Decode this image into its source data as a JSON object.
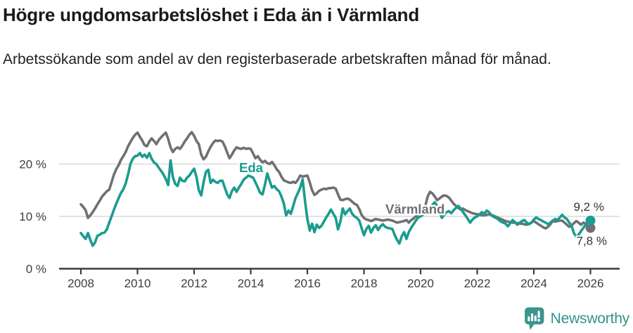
{
  "header": {
    "title": "Högre ungdomsarbetslöshet i Eda än i Värmland",
    "subtitle": "Arbetssökande som andel av den registerbaserade arbetskraften månad för månad."
  },
  "chart_data": {
    "type": "line",
    "title": "Högre ungdomsarbetslöshet i Eda än i Värmland",
    "subtitle": "Arbetssökande som andel av den registerbaserade arbetskraften månad för månad.",
    "unit": "%",
    "x_start_year": 2008,
    "points_per_year": 12,
    "x_end_year": 2026,
    "ylim": [
      0,
      28
    ],
    "grid": "horizontal",
    "legend_position": "inline-labels",
    "xticks": [
      2008,
      2010,
      2012,
      2014,
      2016,
      2018,
      2020,
      2022,
      2024,
      2026
    ],
    "yticks": [
      {
        "value": 0,
        "label": "0 %"
      },
      {
        "value": 10,
        "label": "10 %"
      },
      {
        "value": 20,
        "label": "20 %"
      }
    ],
    "colors": {
      "grid": "#d9d9d9",
      "axis": "#3c3c3c",
      "axis_text": "#3d3d3d",
      "value_text": "#333333"
    },
    "series": [
      {
        "name": "Eda",
        "color": "#1a9c8e",
        "end_value": 9.2,
        "end_label": "9,2 %",
        "end_label_offset": [
          -24,
          -14
        ],
        "label_pos": {
          "x": 340,
          "y": 245
        },
        "values": [
          6.8,
          6.2,
          5.7,
          6.8,
          5.5,
          4.4,
          5.0,
          6.3,
          6.5,
          6.8,
          6.9,
          7.5,
          8.8,
          10.0,
          11.3,
          12.4,
          13.5,
          14.5,
          15.2,
          16.3,
          18.0,
          20.0,
          21.0,
          21.5,
          21.6,
          22.1,
          21.4,
          21.8,
          21.2,
          22.1,
          21.0,
          20.3,
          20.0,
          19.3,
          18.7,
          18.0,
          17.1,
          16.0,
          20.7,
          17.5,
          16.2,
          15.8,
          17.4,
          16.8,
          16.7,
          17.4,
          17.8,
          18.5,
          19.1,
          17.5,
          15.0,
          14.0,
          16.5,
          18.5,
          18.9,
          16.4,
          17.0,
          16.6,
          16.4,
          16.8,
          16.8,
          15.5,
          14.2,
          13.5,
          14.8,
          15.5,
          14.7,
          15.5,
          16.2,
          17.0,
          17.4,
          17.8,
          17.6,
          17.4,
          16.5,
          15.5,
          14.5,
          14.2,
          16.0,
          18.2,
          16.8,
          15.5,
          15.8,
          15.2,
          14.8,
          13.8,
          12.5,
          10.2,
          11.1,
          10.5,
          12.0,
          13.5,
          14.5,
          15.5,
          17.1,
          13.0,
          9.5,
          7.3,
          8.6,
          7.0,
          8.4,
          7.8,
          8.2,
          9.0,
          9.8,
          10.5,
          11.3,
          10.5,
          9.7,
          7.5,
          9.0,
          11.5,
          10.4,
          11.0,
          11.5,
          10.5,
          10.0,
          9.7,
          9.2,
          7.8,
          6.4,
          7.6,
          8.2,
          6.9,
          7.8,
          8.3,
          7.4,
          8.1,
          8.5,
          8.0,
          7.8,
          7.7,
          7.6,
          6.5,
          5.5,
          4.8,
          6.2,
          7.0,
          5.7,
          7.0,
          7.8,
          8.5,
          9.2,
          9.8,
          10.0,
          10.3,
          10.8,
          11.3,
          11.8,
          12.2,
          12.7,
          12.0,
          11.0,
          9.7,
          10.3,
          10.8,
          11.0,
          10.6,
          11.2,
          11.6,
          12.0,
          11.5,
          10.8,
          10.2,
          9.5,
          8.8,
          9.4,
          9.8,
          10.0,
          10.4,
          10.8,
          10.5,
          11.1,
          10.8,
          10.2,
          9.9,
          9.7,
          9.4,
          9.0,
          8.8,
          8.6,
          8.1,
          8.7,
          9.3,
          8.9,
          8.4,
          8.8,
          9.1,
          9.3,
          8.8,
          8.5,
          8.8,
          9.4,
          9.8,
          9.5,
          9.3,
          9.0,
          8.8,
          8.5,
          8.8,
          9.2,
          9.5,
          9.3,
          9.8,
          10.3,
          9.8,
          9.5,
          8.8,
          8.2,
          6.8,
          6.1,
          6.5,
          7.2,
          7.8,
          8.5,
          9.0,
          9.2
        ]
      },
      {
        "name": "Värmland",
        "color": "#707074",
        "end_value": 7.8,
        "end_label": "7,8 %",
        "end_label_offset": [
          -20,
          24
        ],
        "label_pos": {
          "x": 548,
          "y": 304
        },
        "values": [
          12.3,
          11.8,
          11.2,
          9.7,
          10.2,
          10.8,
          11.5,
          12.3,
          13.0,
          13.8,
          14.3,
          14.8,
          15.1,
          16.5,
          18.0,
          19.0,
          19.8,
          20.8,
          21.5,
          22.3,
          23.4,
          24.2,
          25.0,
          25.6,
          26.0,
          25.2,
          24.5,
          23.6,
          23.4,
          24.3,
          24.9,
          24.4,
          23.8,
          24.6,
          25.1,
          25.6,
          26.0,
          24.8,
          23.2,
          22.3,
          22.9,
          23.2,
          22.9,
          23.5,
          24.3,
          24.9,
          25.6,
          26.1,
          25.4,
          24.4,
          23.8,
          21.8,
          20.9,
          21.4,
          22.4,
          23.3,
          24.0,
          24.5,
          24.4,
          24.5,
          24.3,
          23.4,
          22.2,
          21.1,
          21.8,
          22.6,
          23.2,
          23.0,
          22.9,
          23.1,
          22.9,
          23.0,
          22.9,
          22.0,
          21.1,
          21.5,
          20.8,
          20.3,
          20.6,
          20.2,
          20.0,
          20.4,
          19.8,
          19.0,
          18.5,
          17.6,
          16.9,
          16.7,
          16.5,
          16.4,
          16.6,
          16.4,
          17.0,
          17.8,
          17.6,
          17.7,
          17.8,
          16.5,
          15.0,
          14.1,
          14.4,
          14.9,
          15.1,
          15.3,
          15.2,
          15.4,
          15.4,
          15.5,
          15.3,
          14.2,
          13.2,
          13.1,
          13.3,
          13.4,
          13.2,
          12.8,
          12.4,
          12.2,
          11.4,
          10.3,
          9.7,
          9.4,
          9.3,
          9.1,
          9.3,
          9.5,
          9.4,
          9.3,
          9.2,
          9.3,
          9.4,
          9.3,
          9.2,
          9.0,
          8.8,
          8.9,
          9.0,
          9.1,
          9.3,
          8.8,
          9.3,
          9.6,
          10.0,
          10.4,
          10.8,
          11.2,
          12.0,
          13.8,
          14.7,
          14.4,
          13.8,
          13.1,
          13.4,
          13.8,
          14.0,
          13.9,
          13.6,
          13.0,
          12.4,
          12.0,
          11.6,
          11.3,
          11.5,
          11.2,
          11.0,
          10.8,
          10.6,
          10.5,
          10.4,
          10.3,
          10.2,
          10.2,
          10.3,
          10.4,
          10.3,
          10.1,
          9.9,
          9.7,
          9.5,
          9.3,
          9.1,
          9.0,
          8.9,
          8.8,
          8.8,
          8.7,
          8.6,
          8.6,
          8.5,
          8.4,
          8.6,
          8.8,
          9.1,
          8.8,
          8.5,
          8.2,
          7.9,
          7.7,
          8.0,
          8.5,
          9.1,
          9.0,
          9.1,
          9.2,
          9.2,
          8.8,
          8.4,
          8.0,
          8.3,
          8.7,
          9.1,
          8.8,
          8.4,
          8.8,
          8.6,
          8.2,
          7.8
        ]
      }
    ]
  },
  "footer": {
    "brand": "Newsworthy",
    "logo_icon": "newsworthy-bar-chart-bubble"
  }
}
